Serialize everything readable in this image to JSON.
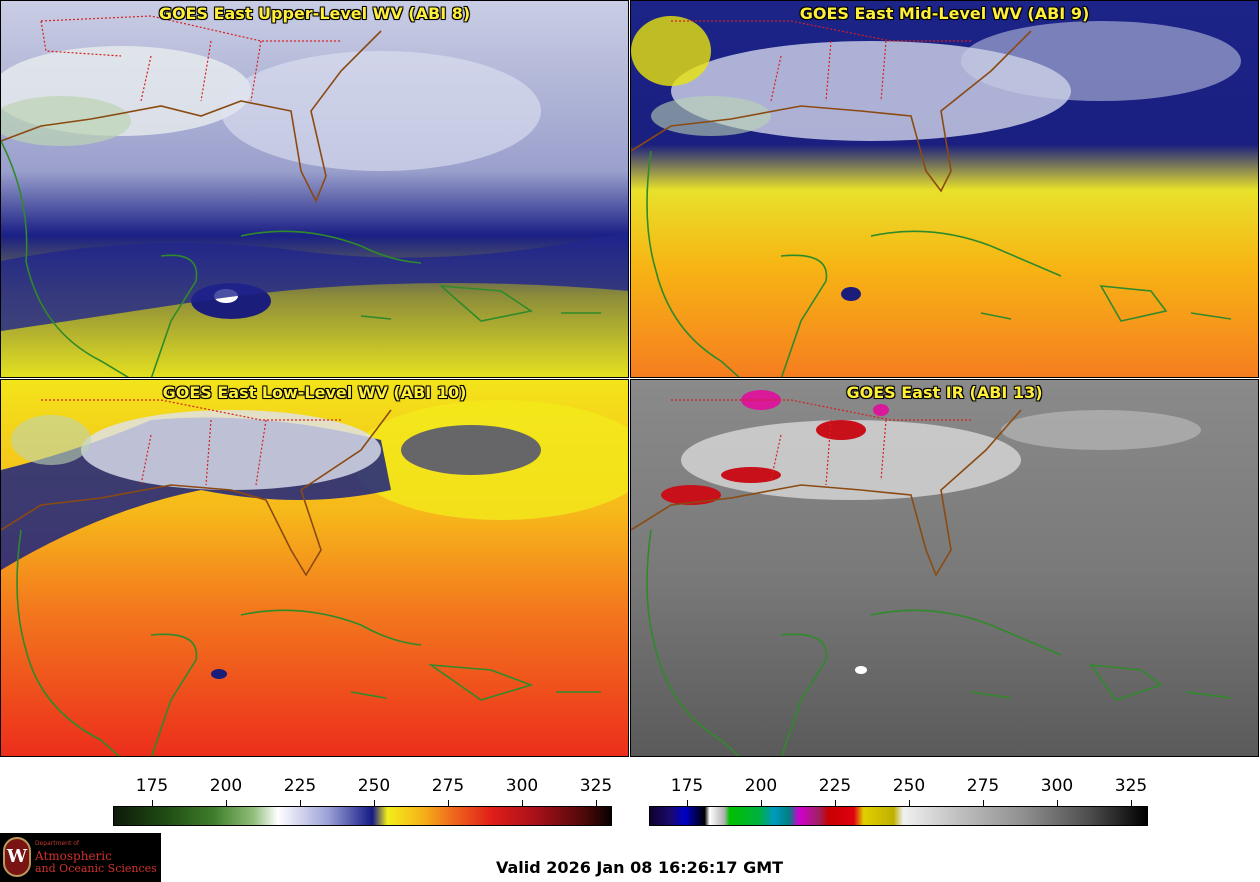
{
  "panels": [
    {
      "title": "GOES East Upper-Level WV (ABI 8)"
    },
    {
      "title": "GOES East Mid-Level WV (ABI 9)"
    },
    {
      "title": "GOES East Low-Level WV (ABI 10)"
    },
    {
      "title": "GOES East IR (ABI 13)"
    }
  ],
  "colorbar_wv": {
    "ticks": [
      "175",
      "200",
      "225",
      "250",
      "275",
      "300",
      "325"
    ]
  },
  "colorbar_ir": {
    "ticks": [
      "175",
      "200",
      "225",
      "250",
      "275",
      "300",
      "325"
    ]
  },
  "logo": {
    "dept": "Department of",
    "line1": "Atmospheric",
    "line2": "and Oceanic Sciences",
    "seal": "W"
  },
  "valid_time": "Valid 2026 Jan 08 16:26:17 GMT"
}
